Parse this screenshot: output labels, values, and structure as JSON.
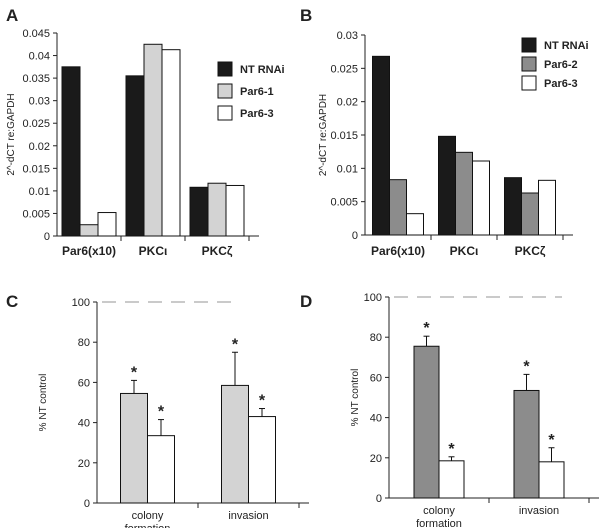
{
  "chart_data": [
    {
      "panel": "A",
      "type": "bar",
      "ylabel": "2^-dCT re:GAPDH",
      "ylim": [
        0,
        0.045
      ],
      "yticks": [
        "0",
        "0.005",
        "0.01",
        "0.015",
        "0.02",
        "0.025",
        "0.03",
        "0.035",
        "0.04",
        "0.045"
      ],
      "categories": [
        "Par6(x10)",
        "PKCι",
        "PKCζ"
      ],
      "series": [
        {
          "name": "NT RNAi",
          "color": "#1a1a1a",
          "values": [
            0.0375,
            0.0355,
            0.0108
          ]
        },
        {
          "name": "Par6-1",
          "color": "#d3d3d3",
          "values": [
            0.0025,
            0.0425,
            0.0117
          ]
        },
        {
          "name": "Par6-3",
          "color": "#ffffff",
          "values": [
            0.0052,
            0.0413,
            0.0112
          ]
        }
      ],
      "legend_position": "right"
    },
    {
      "panel": "B",
      "type": "bar",
      "ylabel": "2^-dCT re:GAPDH",
      "ylim": [
        0,
        0.03
      ],
      "yticks": [
        "0",
        "0.005",
        "0.01",
        "0.015",
        "0.02",
        "0.025",
        "0.03"
      ],
      "categories": [
        "Par6(x10)",
        "PKCι",
        "PKCζ"
      ],
      "series": [
        {
          "name": "NT RNAi",
          "color": "#1a1a1a",
          "values": [
            0.0268,
            0.0148,
            0.0086
          ]
        },
        {
          "name": "Par6-2",
          "color": "#8c8c8c",
          "values": [
            0.0083,
            0.0124,
            0.0063
          ]
        },
        {
          "name": "Par6-3",
          "color": "#ffffff",
          "values": [
            0.0032,
            0.0111,
            0.0082
          ]
        }
      ],
      "legend_position": "top-right"
    },
    {
      "panel": "C",
      "type": "bar",
      "ylabel": "% NT control",
      "ylim": [
        0,
        100
      ],
      "yticks": [
        "0",
        "20",
        "40",
        "60",
        "80",
        "100"
      ],
      "reference_line": 100,
      "categories": [
        [
          "colony",
          "formation"
        ],
        [
          "invasion"
        ]
      ],
      "series": [
        {
          "color": "#d3d3d3",
          "values": [
            54.5,
            58.5
          ],
          "errors": [
            6.5,
            16.5
          ],
          "significant": [
            true,
            true
          ]
        },
        {
          "color": "#ffffff",
          "values": [
            33.5,
            43
          ],
          "errors": [
            8,
            4
          ],
          "significant": [
            true,
            true
          ]
        }
      ]
    },
    {
      "panel": "D",
      "type": "bar",
      "ylabel": "% NT control",
      "ylim": [
        0,
        100
      ],
      "yticks": [
        "0",
        "20",
        "40",
        "60",
        "80",
        "100"
      ],
      "reference_line": 100,
      "categories": [
        [
          "colony",
          "formation"
        ],
        [
          "invasion"
        ]
      ],
      "series": [
        {
          "color": "#8c8c8c",
          "values": [
            75.5,
            53.5
          ],
          "errors": [
            5,
            8
          ],
          "significant": [
            true,
            true
          ]
        },
        {
          "color": "#ffffff",
          "values": [
            18.5,
            18
          ],
          "errors": [
            2,
            7
          ],
          "significant": [
            true,
            true
          ]
        }
      ]
    }
  ],
  "significance_marker": "*"
}
